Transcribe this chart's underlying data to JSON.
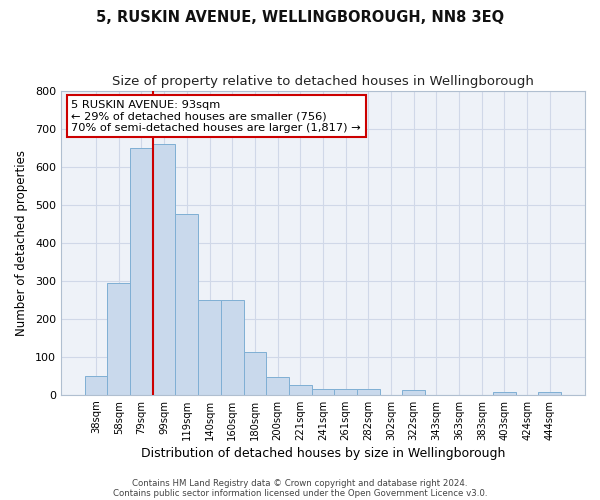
{
  "title": "5, RUSKIN AVENUE, WELLINGBOROUGH, NN8 3EQ",
  "subtitle": "Size of property relative to detached houses in Wellingborough",
  "xlabel": "Distribution of detached houses by size in Wellingborough",
  "ylabel": "Number of detached properties",
  "bar_labels": [
    "38sqm",
    "58sqm",
    "79sqm",
    "99sqm",
    "119sqm",
    "140sqm",
    "160sqm",
    "180sqm",
    "200sqm",
    "221sqm",
    "241sqm",
    "261sqm",
    "282sqm",
    "302sqm",
    "322sqm",
    "343sqm",
    "363sqm",
    "383sqm",
    "403sqm",
    "424sqm",
    "444sqm"
  ],
  "bar_values": [
    50,
    295,
    650,
    660,
    475,
    250,
    250,
    113,
    48,
    27,
    15,
    14,
    14,
    0,
    13,
    0,
    0,
    0,
    7,
    0,
    7
  ],
  "bar_color": "#c9d9ec",
  "bar_edgecolor": "#7fafd4",
  "vline_x_index": 3,
  "vline_color": "#cc0000",
  "annotation_text": "5 RUSKIN AVENUE: 93sqm\n← 29% of detached houses are smaller (756)\n70% of semi-detached houses are larger (1,817) →",
  "annotation_box_color": "#ffffff",
  "annotation_box_edgecolor": "#cc0000",
  "ylim": [
    0,
    800
  ],
  "yticks": [
    0,
    100,
    200,
    300,
    400,
    500,
    600,
    700,
    800
  ],
  "grid_color": "#d0d8e8",
  "bg_color": "#eef2f8",
  "footer_line1": "Contains HM Land Registry data © Crown copyright and database right 2024.",
  "footer_line2": "Contains public sector information licensed under the Open Government Licence v3.0.",
  "title_fontsize": 10.5,
  "subtitle_fontsize": 9.5,
  "xlabel_fontsize": 9,
  "ylabel_fontsize": 8.5
}
